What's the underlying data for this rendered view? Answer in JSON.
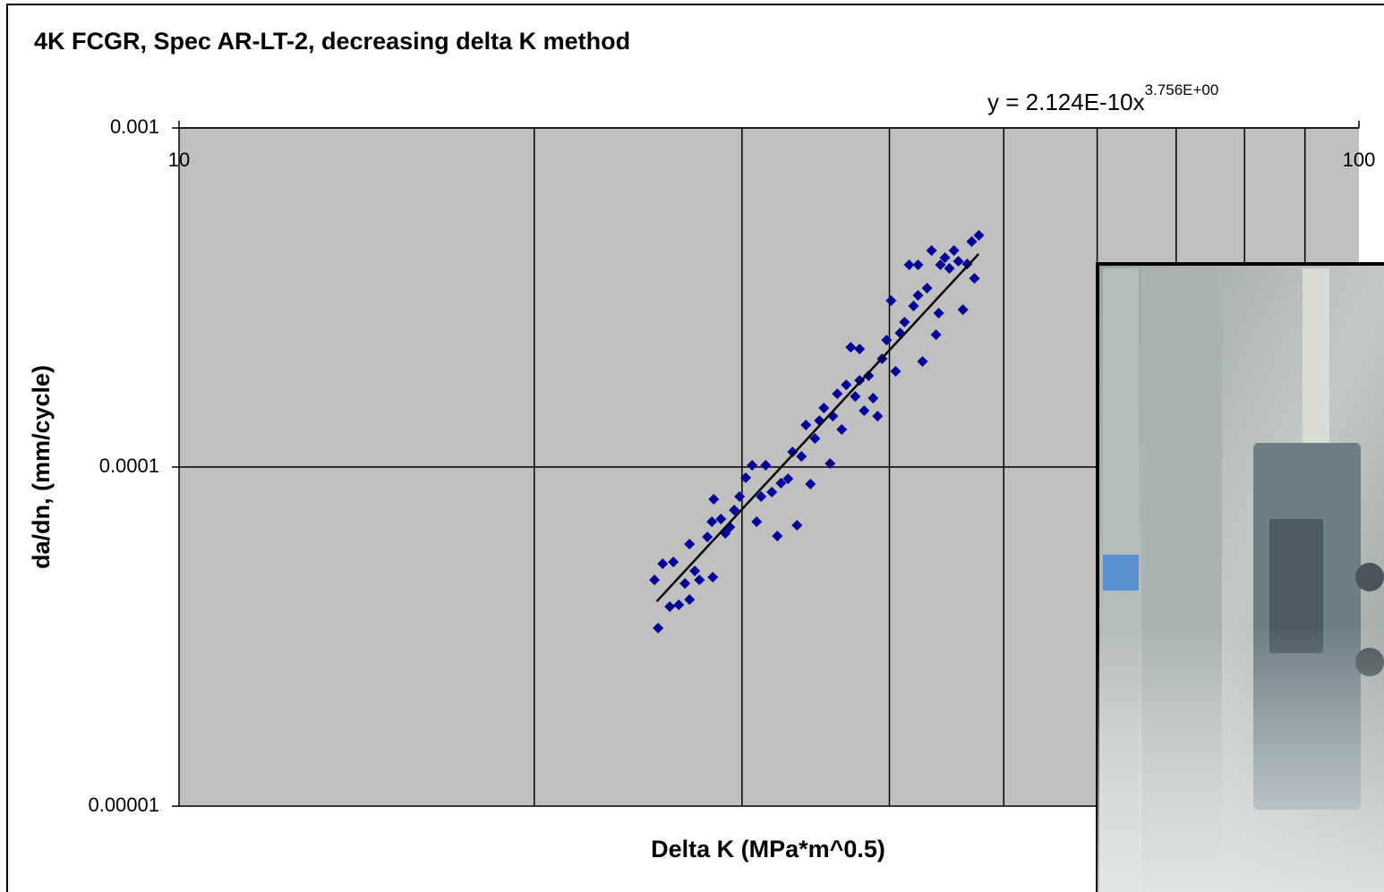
{
  "chart_data": {
    "type": "scatter",
    "title": "4K FCGR, Spec AR-LT-2, decreasing delta K method",
    "x_label": "Delta K (MPa*m^0.5)",
    "y_label": "da/dn, (mm/cycle)",
    "x_log": true,
    "y_log": true,
    "xlim": [
      10,
      100
    ],
    "ylim": [
      1e-05,
      0.001
    ],
    "xticks": [
      10,
      100
    ],
    "x_grid_ticks": [
      20,
      30,
      40,
      50,
      60,
      70,
      80,
      90
    ],
    "yticks": [
      1e-05,
      0.0001,
      0.001
    ],
    "grid": true,
    "color": "#000099",
    "x": [
      25.47,
      25.29,
      25.7,
      26.06,
      26.24,
      26.52,
      26.84,
      27.08,
      27.08,
      27.36,
      27.61,
      28.04,
      28.29,
      28.34,
      28.39,
      28.79,
      29.04,
      29.3,
      29.55,
      29.86,
      30.22,
      30.6,
      30.87,
      31.14,
      31.42,
      31.8,
      32.14,
      32.37,
      32.82,
      33.11,
      33.4,
      33.69,
      33.99,
      34.29,
      34.59,
      34.89,
      35.2,
      35.63,
      35.82,
      36.13,
      36.45,
      36.77,
      37.09,
      37.42,
      37.74,
      38.08,
      38.41,
      38.75,
      39.09,
      39.44,
      39.78,
      40.13,
      40.49,
      40.84,
      41.2,
      41.57,
      41.93,
      42.3,
      42.67,
      43.05,
      43.43,
      43.81,
      44.04,
      44.19,
      44.58,
      44.97,
      45.37,
      45.76,
      46.17,
      46.56,
      46.97,
      47.22,
      47.63,
      42.3,
      37.74
    ],
    "y": [
      3.349e-05,
      4.648e-05,
      5.184e-05,
      3.875e-05,
      5.248e-05,
      3.922e-05,
      4.536e-05,
      4.066e-05,
      5.928e-05,
      4.939e-05,
      4.648e-05,
      6.223e-05,
      6.9e-05,
      4.733e-05,
      8.034e-05,
      7.027e-05,
      6.376e-05,
      6.653e-05,
      7.464e-05,
      8.182e-05,
      9.294e-05,
      0.0001012,
      6.9e-05,
      8.182e-05,
      0.0001012,
      8.434e-05,
      6.261e-05,
      8.961e-05,
      9.236e-05,
      0.0001108,
      6.734e-05,
      0.0001075,
      0.000133,
      8.907e-05,
      0.0001214,
      0.0001371,
      0.0001493,
      0.0001024,
      0.0001413,
      0.0001645,
      0.0001291,
      0.0001748,
      0.0002256,
      0.0001615,
      0.0001802,
      0.0001466,
      0.0001858,
      0.0001596,
      0.0001413,
      0.0002085,
      0.0002368,
      0.0003095,
      0.0001915,
      0.0002486,
      0.0002675,
      0.0003946,
      0.0002984,
      0.0003209,
      0.0002048,
      0.000337,
      0.000435,
      0.0002456,
      0.0002843,
      0.0003946,
      0.0004143,
      0.0003852,
      0.000435,
      0.0004044,
      0.0002912,
      0.000397,
      0.0004622,
      0.0003601,
      0.0004824,
      0.0003946,
      0.0002229
    ],
    "trendline": {
      "type": "power",
      "a": 2.124e-10,
      "b": 3.756,
      "x_range": [
        25.4,
        47.6
      ],
      "color": "#000000",
      "equation": "y = 2.124E-10x",
      "equation_exponent": "3.756E+00"
    }
  }
}
